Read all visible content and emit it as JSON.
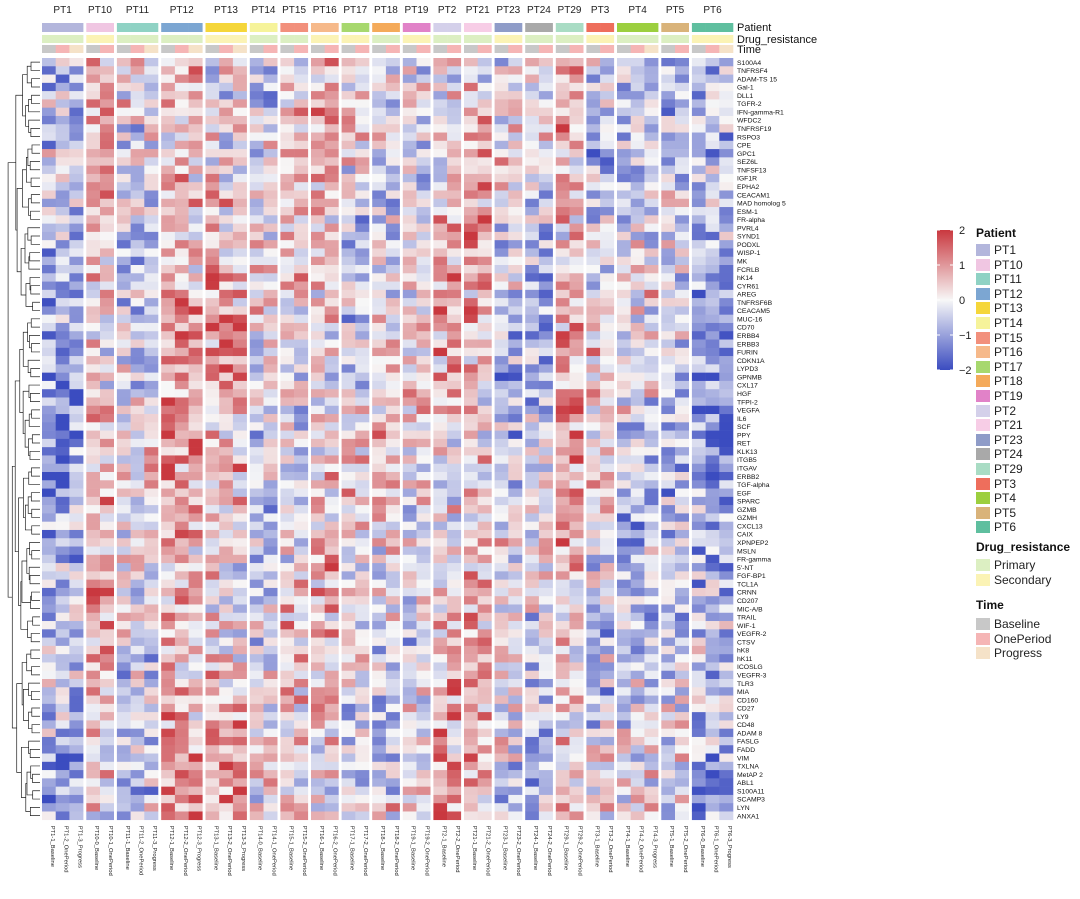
{
  "chart_data": {
    "type": "heatmap",
    "title": "",
    "row_dendrogram": true,
    "groups": [
      {
        "label": "PT1",
        "samples": [
          "PT1-1_Baseline",
          "PT1-2_OnePeriod",
          "PT1-3_Progress"
        ]
      },
      {
        "label": "PT10",
        "samples": [
          "PT10-0_Baseline",
          "PT10-1_OnePeriod"
        ]
      },
      {
        "label": "PT11",
        "samples": [
          "PT11-1_Baseline",
          "PT11-2_OnePeriod",
          "PT11-3_Progress"
        ]
      },
      {
        "label": "PT12",
        "samples": [
          "PT12-1_Baseline",
          "PT12-2_OnePeriod",
          "PT12-3_Progress"
        ]
      },
      {
        "label": "PT13",
        "samples": [
          "PT13-1_Baseline",
          "PT13-2_OnePeriod",
          "PT13-3_Progress"
        ]
      },
      {
        "label": "PT14",
        "samples": [
          "PT14-0_Baseline",
          "PT14-1_OnePeriod"
        ]
      },
      {
        "label": "PT15",
        "samples": [
          "PT15-1_Baseline",
          "PT15-2_OnePeriod"
        ]
      },
      {
        "label": "PT16",
        "samples": [
          "PT16-1_Baseline",
          "PT16-2_OnePeriod"
        ]
      },
      {
        "label": "PT17",
        "samples": [
          "PT17-1_Baseline",
          "PT17-2_OnePeriod"
        ]
      },
      {
        "label": "PT18",
        "samples": [
          "PT18-1_Baseline",
          "PT18-2_OnePeriod"
        ]
      },
      {
        "label": "PT19",
        "samples": [
          "PT19-1_Baseline",
          "PT19-2_OnePeriod"
        ]
      },
      {
        "label": "PT2",
        "samples": [
          "PT2-1_Baseline",
          "PT2-2_OnePeriod"
        ]
      },
      {
        "label": "PT21",
        "samples": [
          "PT21-1_Baseline",
          "PT21-2_OnePeriod"
        ]
      },
      {
        "label": "PT23",
        "samples": [
          "PT23-1_Baseline",
          "PT23-2_OnePeriod"
        ]
      },
      {
        "label": "PT24",
        "samples": [
          "PT24-1_Baseline",
          "PT24-2_OnePeriod"
        ]
      },
      {
        "label": "PT29",
        "samples": [
          "PT29-1_Baseline",
          "PT29-2_OnePeriod"
        ]
      },
      {
        "label": "PT3",
        "samples": [
          "PT3-1_Baseline",
          "PT3-2_OnePeriod"
        ]
      },
      {
        "label": "PT4",
        "samples": [
          "PT4-1_Baseline",
          "PT4-2_OnePeriod",
          "PT4-3_Progress"
        ]
      },
      {
        "label": "PT5",
        "samples": [
          "PT5-1_Baseline",
          "PT5-2_OnePeriod"
        ]
      },
      {
        "label": "PT6",
        "samples": [
          "PT6-0_Baseline",
          "PT6-1_OnePeriod",
          "PT6-3_Progress"
        ]
      }
    ],
    "annotation_rows": [
      "Patient",
      "Drug_resistance",
      "Time"
    ],
    "rows": [
      "S100A4",
      "TNFRSF4",
      "ADAM-TS 15",
      "Gal-1",
      "DLL1",
      "TGFR-2",
      "IFN-gamma-R1",
      "WFDC2",
      "TNFRSF19",
      "RSPO3",
      "CPE",
      "GPC1",
      "SEZ6L",
      "TNFSF13",
      "IGF1R",
      "EPHA2",
      "CEACAM1",
      "MAD homolog 5",
      "ESM-1",
      "FR-alpha",
      "PVRL4",
      "SYND1",
      "PODXL",
      "WISP-1",
      "MK",
      "FCRLB",
      "hK14",
      "CYR61",
      "AREG",
      "TNFRSF6B",
      "CEACAM5",
      "MUC-16",
      "CD70",
      "ERBB4",
      "ERBB3",
      "FURIN",
      "CDKN1A",
      "LYPD3",
      "GPNMB",
      "CXL17",
      "HGF",
      "TFPI-2",
      "VEGFA",
      "IL6",
      "SCF",
      "PPY",
      "RET",
      "KLK13",
      "ITGB5",
      "ITGAV",
      "ERBB2",
      "TGF-alpha",
      "EGF",
      "SPARC",
      "GZMB",
      "GZMH",
      "CXCL13",
      "CAIX",
      "XPNPEP2",
      "MSLN",
      "FR-gamma",
      "5'-NT",
      "FGF-BP1",
      "TCL1A",
      "CRNN",
      "CD207",
      "MIC-A/B",
      "TRAIL",
      "WIF-1",
      "VEGFR-2",
      "CTSV",
      "hK8",
      "hK11",
      "ICOSLG",
      "VEGFR-3",
      "TLR3",
      "MIA",
      "CD160",
      "CD27",
      "LY9",
      "CD48",
      "ADAM 8",
      "FASLG",
      "FADD",
      "VIM",
      "TXLNA",
      "MetAP 2",
      "ABL1",
      "S100A11",
      "SCAMP3",
      "LYN",
      "ANXA1"
    ],
    "patient_colors": {
      "PT1": "#b3b6dc",
      "PT10": "#f0c6e2",
      "PT11": "#8fd2c4",
      "PT12": "#7ca6d2",
      "PT13": "#f5d63a",
      "PT14": "#f6f39a",
      "PT15": "#f2907c",
      "PT16": "#f6b98a",
      "PT17": "#a7d86e",
      "PT18": "#f4aa5a",
      "PT19": "#e182c8",
      "PT2": "#d4d0ea",
      "PT21": "#f7cde6",
      "PT23": "#8f9cc8",
      "PT24": "#a9a9a9",
      "PT29": "#a9dcc4",
      "PT3": "#ee6e5c",
      "PT4": "#9ccf3f",
      "PT5": "#d9b37a",
      "PT6": "#5fbf9f"
    },
    "drug_resistance_colors": {
      "Primary": "#dcefc2",
      "Secondary": "#fbf3b5"
    },
    "time_colors": {
      "Baseline": "#c8c8c8",
      "OnePeriod": "#f5b5b5",
      "Progress": "#f5e2c8"
    },
    "color_scale": {
      "min": -2,
      "max": 2,
      "ticks": [
        2,
        1,
        0,
        -1,
        -2
      ],
      "low": "#3b4cc0",
      "mid": "#f7f7f7",
      "high": "#c9383f"
    },
    "legend": {
      "patient_title": "Patient",
      "patient_items": [
        "PT1",
        "PT10",
        "PT11",
        "PT12",
        "PT13",
        "PT14",
        "PT15",
        "PT16",
        "PT17",
        "PT18",
        "PT19",
        "PT2",
        "PT21",
        "PT23",
        "PT24",
        "PT29",
        "PT3",
        "PT4",
        "PT5",
        "PT6"
      ],
      "drug_title": "Drug_resistance",
      "drug_items": [
        "Primary",
        "Secondary"
      ],
      "time_title": "Time",
      "time_items": [
        "Baseline",
        "OnePeriod",
        "Progress"
      ]
    }
  }
}
